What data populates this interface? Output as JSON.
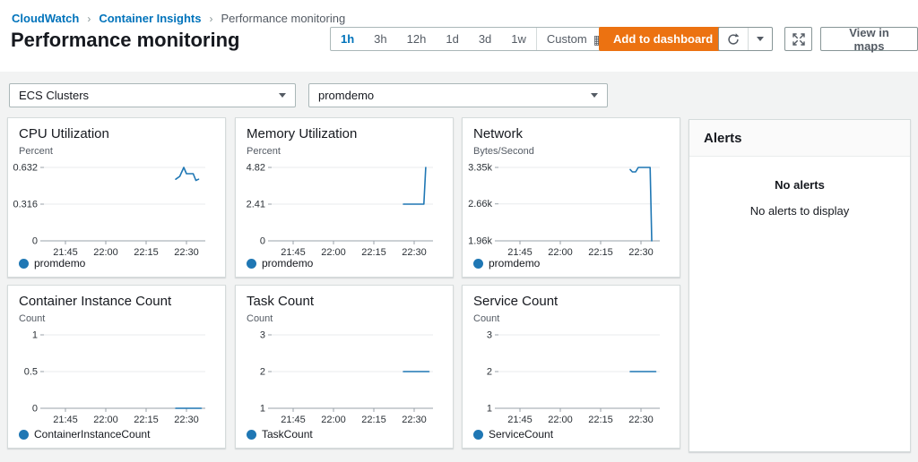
{
  "breadcrumb": {
    "items": [
      "CloudWatch",
      "Container Insights",
      "Performance monitoring"
    ],
    "separator": "›"
  },
  "page": {
    "title": "Performance monitoring"
  },
  "toolbar": {
    "time_ranges": [
      "1h",
      "3h",
      "12h",
      "1d",
      "3d",
      "1w"
    ],
    "selected_range": "1h",
    "custom_label": "Custom",
    "add_to_dashboard": "Add to dashboard",
    "view_in_maps": "View in maps"
  },
  "filters": {
    "resource_type_selected": "ECS Clusters",
    "cluster_selected": "promdemo"
  },
  "alerts": {
    "title": "Alerts",
    "empty_title": "No alerts",
    "empty_message": "No alerts to display"
  },
  "colors": {
    "accent_orange": "#ec7211",
    "link_blue": "#0073bb",
    "line": "#1f77b4",
    "grid": "#e9ebed",
    "axis": "#98a2a8"
  },
  "chart_data": [
    {
      "type": "line",
      "title": "CPU Utilization",
      "unit": "Percent",
      "legend": "promdemo",
      "x_min": 1297,
      "x_max": 1357,
      "x_ticks": [
        {
          "value": 1305,
          "label": "21:45"
        },
        {
          "value": 1320,
          "label": "22:00"
        },
        {
          "value": 1335,
          "label": "22:15"
        },
        {
          "value": 1350,
          "label": "22:30"
        }
      ],
      "y_min": 0,
      "y_max": 0.632,
      "y_ticks": [
        {
          "value": 0,
          "label": "0"
        },
        {
          "value": 0.316,
          "label": "0.316"
        },
        {
          "value": 0.632,
          "label": "0.632"
        }
      ],
      "points": [
        [
          1346,
          0.53
        ],
        [
          1347.5,
          0.555
        ],
        [
          1349,
          0.632
        ],
        [
          1350,
          0.578
        ],
        [
          1352.5,
          0.578
        ],
        [
          1353.5,
          0.52
        ],
        [
          1354.5,
          0.53
        ]
      ]
    },
    {
      "type": "line",
      "title": "Memory Utilization",
      "unit": "Percent",
      "legend": "promdemo",
      "x_min": 1297,
      "x_max": 1357,
      "x_ticks": [
        {
          "value": 1305,
          "label": "21:45"
        },
        {
          "value": 1320,
          "label": "22:00"
        },
        {
          "value": 1335,
          "label": "22:15"
        },
        {
          "value": 1350,
          "label": "22:30"
        }
      ],
      "y_min": 0,
      "y_max": 4.82,
      "y_ticks": [
        {
          "value": 0,
          "label": "0"
        },
        {
          "value": 2.41,
          "label": "2.41"
        },
        {
          "value": 4.82,
          "label": "4.82"
        }
      ],
      "points": [
        [
          1346,
          2.41
        ],
        [
          1353.6,
          2.41
        ],
        [
          1354.3,
          4.82
        ]
      ]
    },
    {
      "type": "line",
      "title": "Network",
      "unit": "Bytes/Second",
      "legend": "promdemo",
      "x_min": 1297,
      "x_max": 1357,
      "x_ticks": [
        {
          "value": 1305,
          "label": "21:45"
        },
        {
          "value": 1320,
          "label": "22:00"
        },
        {
          "value": 1335,
          "label": "22:15"
        },
        {
          "value": 1350,
          "label": "22:30"
        }
      ],
      "y_min": 1960,
      "y_max": 3350,
      "y_ticks": [
        {
          "value": 1960,
          "label": "1.96k"
        },
        {
          "value": 2660,
          "label": "2.66k"
        },
        {
          "value": 3350,
          "label": "3.35k"
        }
      ],
      "points": [
        [
          1346,
          3310
        ],
        [
          1346.8,
          3265
        ],
        [
          1348,
          3265
        ],
        [
          1349,
          3350
        ],
        [
          1353.4,
          3350
        ],
        [
          1354,
          1960
        ]
      ]
    },
    {
      "type": "line",
      "title": "Container Instance Count",
      "unit": "Count",
      "legend": "ContainerInstanceCount",
      "x_min": 1297,
      "x_max": 1357,
      "x_ticks": [
        {
          "value": 1305,
          "label": "21:45"
        },
        {
          "value": 1320,
          "label": "22:00"
        },
        {
          "value": 1335,
          "label": "22:15"
        },
        {
          "value": 1350,
          "label": "22:30"
        }
      ],
      "y_min": 0,
      "y_max": 1,
      "y_ticks": [
        {
          "value": 0,
          "label": "0"
        },
        {
          "value": 0.5,
          "label": "0.5"
        },
        {
          "value": 1,
          "label": "1"
        }
      ],
      "points": [
        [
          1346,
          0
        ],
        [
          1355.5,
          0
        ]
      ]
    },
    {
      "type": "line",
      "title": "Task Count",
      "unit": "Count",
      "legend": "TaskCount",
      "x_min": 1297,
      "x_max": 1357,
      "x_ticks": [
        {
          "value": 1305,
          "label": "21:45"
        },
        {
          "value": 1320,
          "label": "22:00"
        },
        {
          "value": 1335,
          "label": "22:15"
        },
        {
          "value": 1350,
          "label": "22:30"
        }
      ],
      "y_min": 1,
      "y_max": 3,
      "y_ticks": [
        {
          "value": 1,
          "label": "1"
        },
        {
          "value": 2,
          "label": "2"
        },
        {
          "value": 3,
          "label": "3"
        }
      ],
      "points": [
        [
          1346,
          2
        ],
        [
          1355.5,
          2
        ]
      ]
    },
    {
      "type": "line",
      "title": "Service Count",
      "unit": "Count",
      "legend": "ServiceCount",
      "x_min": 1297,
      "x_max": 1357,
      "x_ticks": [
        {
          "value": 1305,
          "label": "21:45"
        },
        {
          "value": 1320,
          "label": "22:00"
        },
        {
          "value": 1335,
          "label": "22:15"
        },
        {
          "value": 1350,
          "label": "22:30"
        }
      ],
      "y_min": 1,
      "y_max": 3,
      "y_ticks": [
        {
          "value": 1,
          "label": "1"
        },
        {
          "value": 2,
          "label": "2"
        },
        {
          "value": 3,
          "label": "3"
        }
      ],
      "points": [
        [
          1346,
          2
        ],
        [
          1355.5,
          2
        ]
      ]
    }
  ]
}
